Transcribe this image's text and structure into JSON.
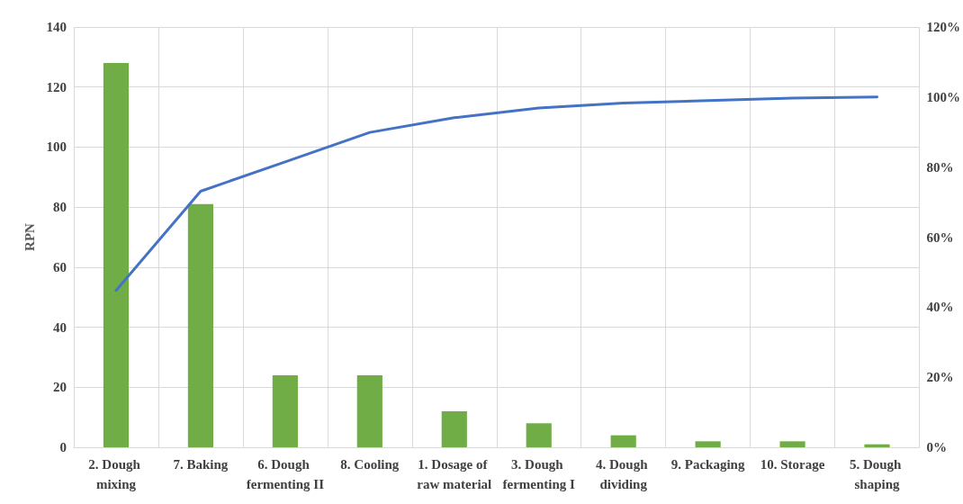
{
  "chart_data": {
    "type": "bar",
    "ylabel": "RPN",
    "categories": [
      "2. Dough mixing",
      "7. Baking",
      "6. Dough fermenting II",
      "8. Cooling",
      "1. Dosage of raw material",
      "3. Dough fermenting I",
      "4. Dough dividing",
      "9. Packaging",
      "10. Storage",
      "5. Dough shaping"
    ],
    "series": [
      {
        "color": "#70ad47",
        "values": [
          128,
          81,
          24,
          24,
          12,
          8,
          4,
          2,
          2,
          1
        ]
      },
      {
        "type": "line",
        "axis": "y2",
        "color": "#4472c4",
        "values": [
          44.8,
          73.1,
          81.5,
          89.9,
          94.1,
          96.9,
          98.3,
          99.0,
          99.7,
          100
        ]
      }
    ],
    "ylim": [
      0,
      140
    ],
    "yticks": [
      0,
      20,
      40,
      60,
      80,
      100,
      120,
      140
    ],
    "y2lim": [
      0,
      120
    ],
    "y2ticks": [
      {
        "value": 0,
        "label": "0%"
      },
      {
        "value": 20,
        "label": "20%"
      },
      {
        "value": 40,
        "label": "40%"
      },
      {
        "value": 60,
        "label": "60%"
      },
      {
        "value": 80,
        "label": "80%"
      },
      {
        "value": 100,
        "label": "100%"
      },
      {
        "value": 120,
        "label": "120%"
      }
    ],
    "grid": true,
    "marker": "none",
    "line_style": "solid"
  }
}
